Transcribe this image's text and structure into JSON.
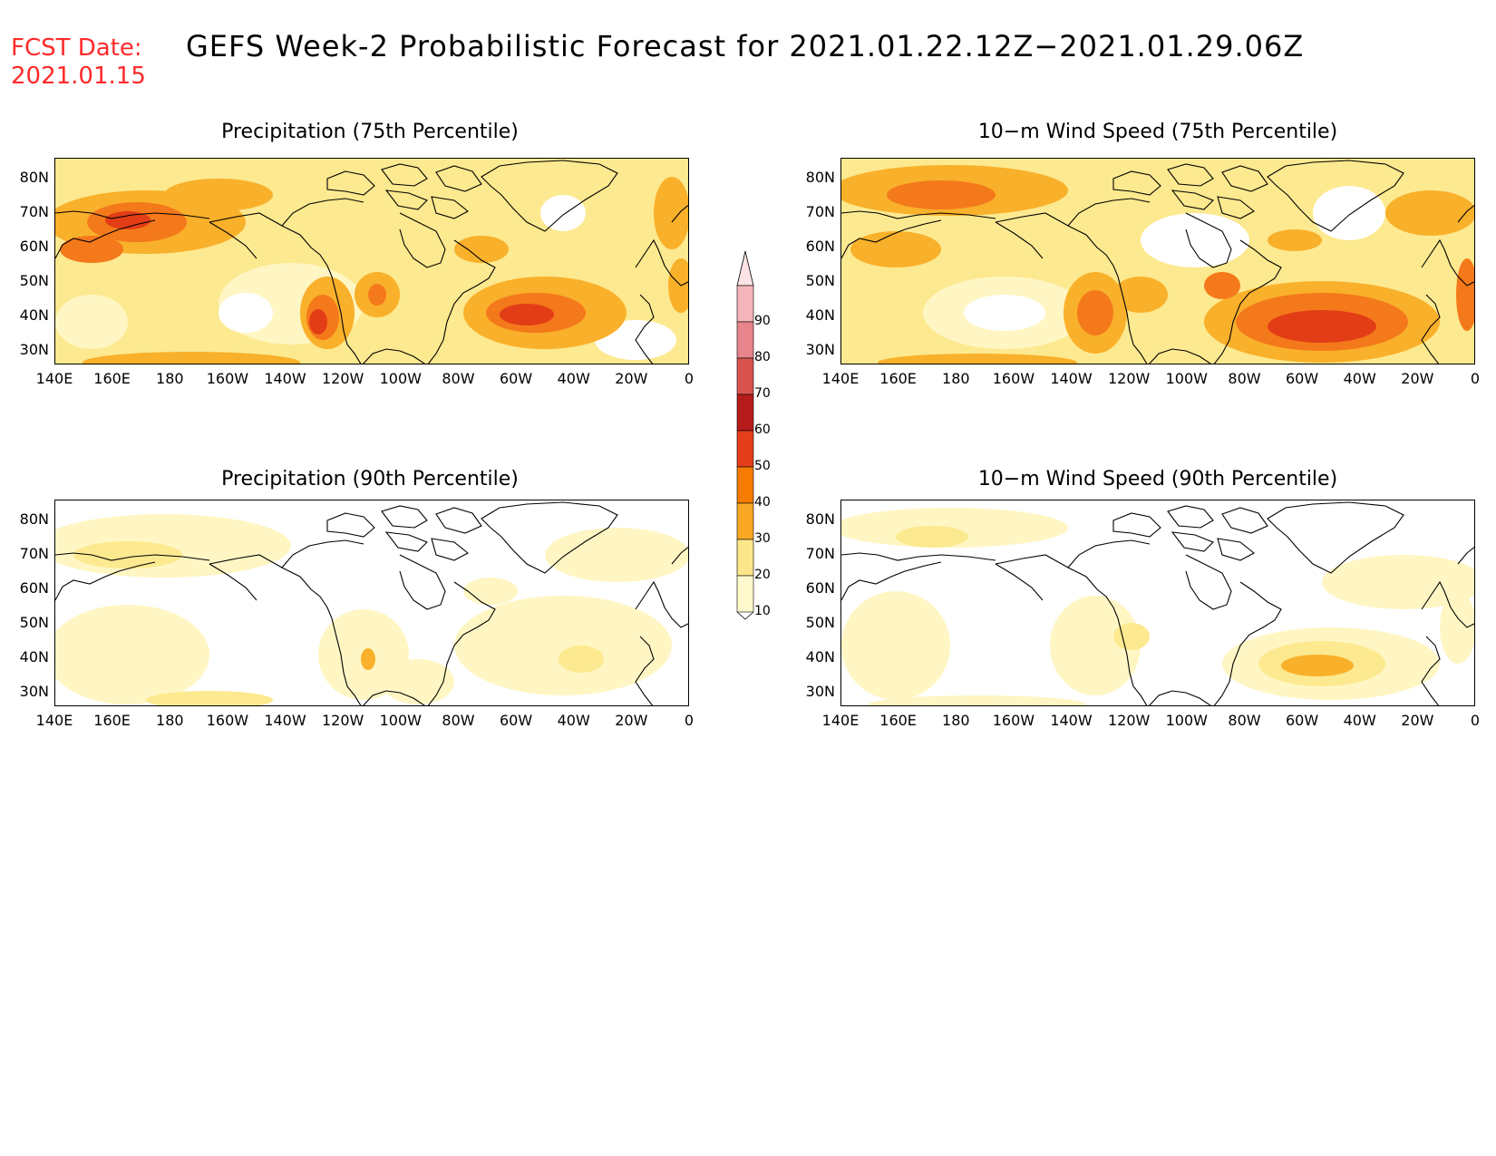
{
  "header": {
    "fcst_label": "FCST Date:",
    "fcst_date": "2021.01.15",
    "title": "GEFS Week-2 Probabilistic Forecast for 2021.01.22.12Z−2021.01.29.06Z"
  },
  "panels": [
    {
      "title": "Precipitation (75th Percentile)"
    },
    {
      "title": "10−m Wind Speed (75th Percentile)"
    },
    {
      "title": "Precipitation (90th Percentile)"
    },
    {
      "title": "10−m Wind Speed (90th Percentile)"
    }
  ],
  "axes": {
    "lat_labels": [
      "80N",
      "70N",
      "60N",
      "50N",
      "40N",
      "30N"
    ],
    "lon_labels": [
      "140E",
      "160E",
      "180",
      "160W",
      "140W",
      "120W",
      "100W",
      "80W",
      "60W",
      "40W",
      "20W",
      "0"
    ]
  },
  "colorbar": {
    "levels": [
      "10",
      "20",
      "30",
      "40",
      "50",
      "60",
      "70",
      "80",
      "90"
    ],
    "colors": [
      "#fffacd",
      "#fde68a",
      "#f9a825",
      "#f57c00",
      "#e53e1a",
      "#b71c1c",
      "#d9534f",
      "#e8848b",
      "#f4b6bb",
      "#fde3e5"
    ]
  },
  "map_colors": {
    "white": "#ffffff",
    "pale": "#fff6c4",
    "light": "#fde98f",
    "orange": "#f9b02a",
    "dark_orange": "#f4791b",
    "red": "#e23d16",
    "dark_red": "#b81414"
  }
}
